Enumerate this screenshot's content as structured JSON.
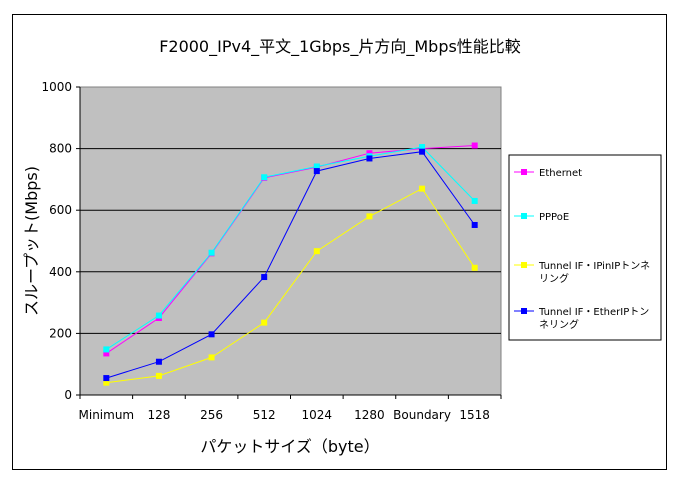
{
  "chart_data": {
    "type": "line",
    "title": "F2000_IPv4_平文_1Gbps_片方向_Mbps性能比較",
    "xlabel": "パケットサイズ（byte）",
    "ylabel": "スループット(Mbps)",
    "categories": [
      "Minimum",
      "128",
      "256",
      "512",
      "1024",
      "1280",
      "Boundary",
      "1518"
    ],
    "ylim": [
      0,
      1000
    ],
    "yticks": [
      0,
      200,
      400,
      600,
      800,
      1000
    ],
    "grid": true,
    "legend_position": "right",
    "colors": {
      "plot_background": "#c0c0c0",
      "grid": "#000000"
    },
    "series": [
      {
        "name": "Ethernet",
        "legend_lines": [
          "Ethernet"
        ],
        "color": "#ff00ff",
        "values": [
          135,
          250,
          460,
          705,
          740,
          785,
          800,
          810
        ]
      },
      {
        "name": "PPPoE",
        "legend_lines": [
          "PPPoE"
        ],
        "color": "#00ffff",
        "values": [
          148,
          258,
          462,
          707,
          742,
          775,
          805,
          630
        ]
      },
      {
        "name": "Tunnel IF・IPinIPトンネリング",
        "legend_lines": [
          "Tunnel IF・IPinIPトンネ",
          "リング"
        ],
        "color": "#ffff00",
        "values": [
          40,
          62,
          122,
          235,
          467,
          580,
          670,
          413
        ]
      },
      {
        "name": "Tunnel IF・EtherIPトンネリング",
        "legend_lines": [
          "Tunnel IF・EtherIPトン",
          "ネリング"
        ],
        "color": "#0000ff",
        "values": [
          55,
          108,
          197,
          383,
          727,
          768,
          790,
          552
        ]
      }
    ]
  }
}
